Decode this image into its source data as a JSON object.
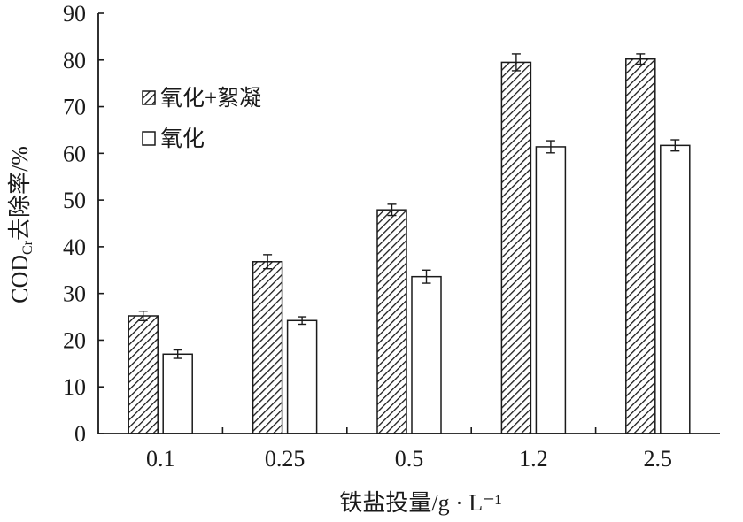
{
  "chart_data": {
    "type": "bar",
    "xlabel": "铁盐投量/g · L⁻¹",
    "ylabel_main": "COD",
    "ylabel_sub": "Cr",
    "ylabel_rest": "去除率/%",
    "categories": [
      "0.1",
      "0.25",
      "0.5",
      "1.2",
      "2.5"
    ],
    "ylim": [
      0,
      90
    ],
    "yticks": [
      0,
      10,
      20,
      30,
      40,
      50,
      60,
      70,
      80,
      90
    ],
    "grid": false,
    "legend_position": "top-left",
    "series": [
      {
        "name": "氧化+絮凝",
        "pattern": "diagonal-hatch",
        "values": [
          25.2,
          36.8,
          47.9,
          79.5,
          80.2
        ],
        "errors": [
          1.0,
          1.5,
          1.2,
          1.8,
          1.1
        ]
      },
      {
        "name": "氧化",
        "pattern": "none",
        "values": [
          17.0,
          24.2,
          33.6,
          61.4,
          61.7
        ],
        "errors": [
          0.9,
          0.8,
          1.4,
          1.3,
          1.2
        ]
      }
    ]
  },
  "colors": {
    "axis": "#1a1a1a",
    "bar_fill": "#ffffff",
    "hatch": "#1a1a1a"
  }
}
